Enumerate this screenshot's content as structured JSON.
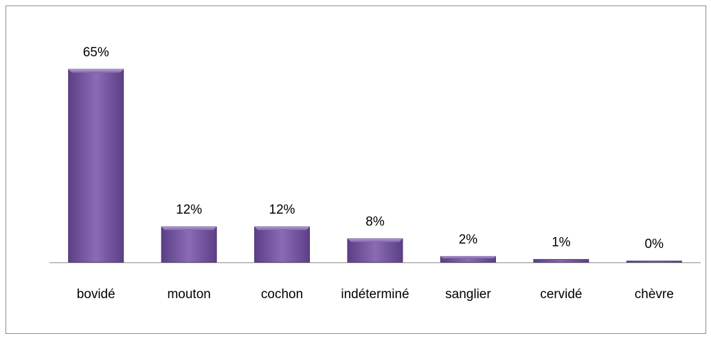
{
  "chart_data": {
    "type": "bar",
    "categories": [
      "bovidé",
      "mouton",
      "cochon",
      "indéterminé",
      "sanglier",
      "cervidé",
      "chèvre"
    ],
    "values": [
      65,
      12,
      12,
      8,
      2,
      1,
      0
    ],
    "data_labels": [
      "65%",
      "12%",
      "12%",
      "8%",
      "2%",
      "1%",
      "0%"
    ],
    "title": "",
    "xlabel": "",
    "ylabel": "",
    "ylim": [
      0,
      65
    ],
    "grid": false,
    "legend": "none",
    "bar_color": "#8064a2",
    "bar_color_dark": "#5b3f7d"
  }
}
